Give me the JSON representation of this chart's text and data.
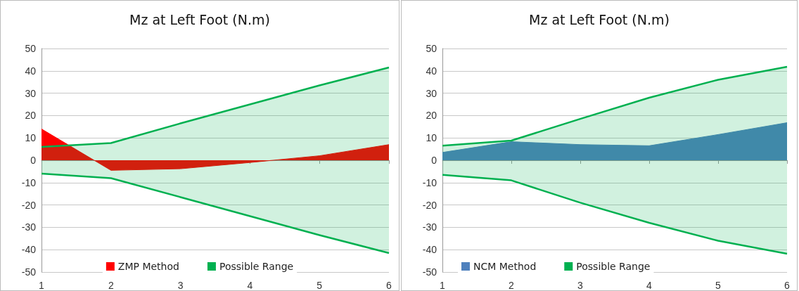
{
  "chart_data": [
    {
      "type": "area",
      "title": "Mz at Left Foot (N.m)",
      "categories": [
        "1",
        "2",
        "3",
        "4",
        "5",
        "6"
      ],
      "ylim": [
        -50,
        50
      ],
      "yticks": [
        -50,
        -40,
        -30,
        -20,
        -10,
        0,
        10,
        20,
        30,
        40,
        50
      ],
      "grid": "y",
      "legend": "bottom",
      "marker": "none",
      "series": [
        {
          "name": "ZMP Method",
          "color": "#ff0000",
          "values": [
            14,
            -4.5,
            -3.8,
            -1,
            2,
            7
          ]
        },
        {
          "name": "Possible Range",
          "color": "#00b050",
          "values": [
            6,
            7.7,
            16.5,
            25,
            33.5,
            41.5
          ]
        },
        {
          "color": "#00b050",
          "values": [
            -6,
            -8,
            -16.5,
            -25,
            -33.5,
            -41.5
          ]
        }
      ]
    },
    {
      "type": "area",
      "title": "Mz at Left Foot (N.m)",
      "categories": [
        "1",
        "2",
        "3",
        "4",
        "5",
        "6"
      ],
      "ylim": [
        -50,
        50
      ],
      "yticks": [
        -50,
        -40,
        -30,
        -20,
        -10,
        0,
        10,
        20,
        30,
        40,
        50
      ],
      "grid": "y",
      "legend": "bottom left",
      "marker": "none",
      "series": [
        {
          "name": "NCM Method",
          "color": "#4f81bd",
          "values": [
            3.5,
            8.3,
            7,
            6.5,
            11.5,
            16.8
          ]
        },
        {
          "name": "Possible Range",
          "color": "#00b050",
          "values": [
            6.5,
            8.8,
            18.5,
            28,
            36,
            41.8
          ]
        },
        {
          "color": "#00b050",
          "values": [
            -6.5,
            -9,
            -19,
            -28,
            -36,
            -41.8
          ]
        }
      ]
    }
  ]
}
